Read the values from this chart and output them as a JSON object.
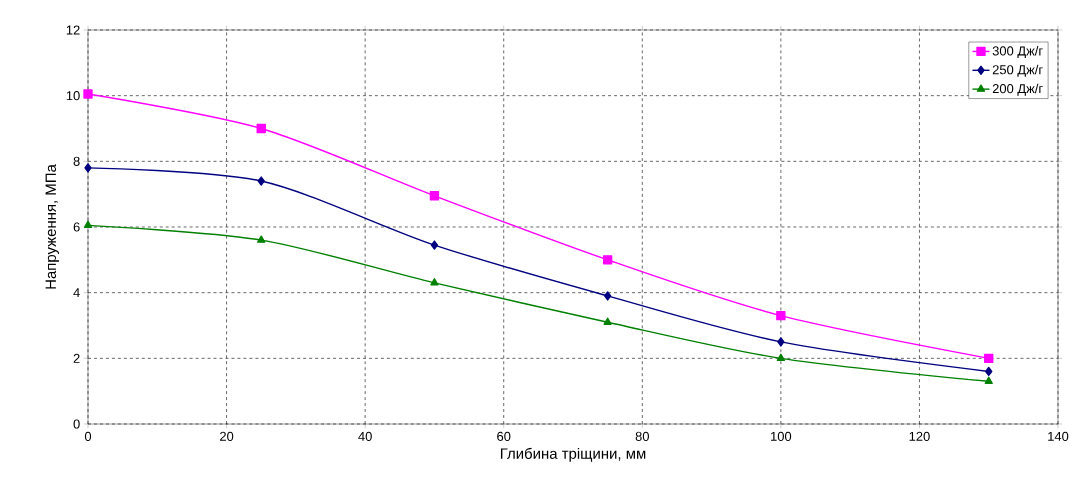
{
  "chart_data": {
    "type": "line",
    "xlabel": "Глибина тріщини, мм",
    "ylabel": "Напруження, МПа",
    "x": [
      0,
      25,
      50,
      75,
      100,
      130
    ],
    "series": [
      {
        "name": "300 Дж/г",
        "color": "#ff00ff",
        "marker": "square",
        "values": [
          10.05,
          9.0,
          6.95,
          5.0,
          3.3,
          2.0
        ]
      },
      {
        "name": "250 Дж/г",
        "color": "#000080",
        "marker": "diamond",
        "values": [
          7.8,
          7.4,
          5.45,
          3.9,
          2.5,
          1.6
        ]
      },
      {
        "name": "200 Дж/г",
        "color": "#008000",
        "marker": "triangle",
        "values": [
          6.05,
          5.6,
          4.3,
          3.1,
          2.0,
          1.3
        ]
      }
    ],
    "xlim": [
      0,
      140
    ],
    "ylim": [
      0,
      12
    ],
    "xticks": [
      0,
      20,
      40,
      60,
      80,
      100,
      120,
      140
    ],
    "yticks": [
      0,
      2,
      4,
      6,
      8,
      10,
      12
    ],
    "grid": true,
    "legend": "top right",
    "line_style": "solid"
  }
}
